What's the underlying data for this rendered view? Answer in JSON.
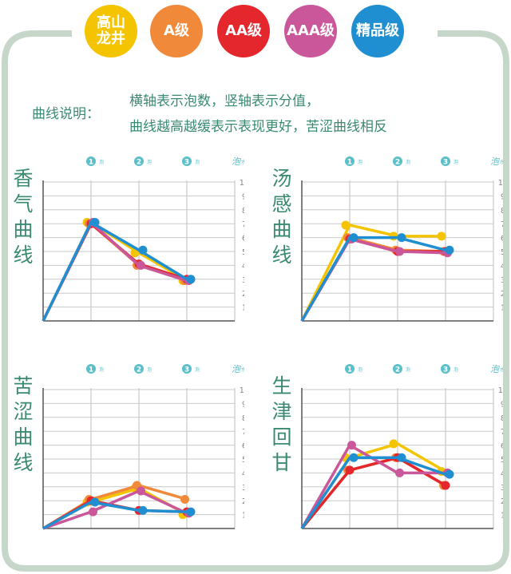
{
  "legend": [
    {
      "label": "高山\n龙井",
      "color": "#f5c400"
    },
    {
      "label": "A级",
      "color": "#f08a3a"
    },
    {
      "label": "AA级",
      "color": "#e4262d"
    },
    {
      "label": "AAA级",
      "color": "#c9579a"
    },
    {
      "label": "精品级",
      "color": "#1f8fd2"
    }
  ],
  "note": {
    "label": "曲线说明：",
    "line1": "横轴表示泡数，竖轴表示分值，",
    "line2": "曲线越高越缓表示表现更好，苦涩曲线相反"
  },
  "colors": {
    "frame": "#c6d6c8",
    "grid": "#c9c9c9",
    "axis": "#555555",
    "tick": "#5bbfca",
    "text": "#3a8a72"
  },
  "x_axis": {
    "ticks": [
      "1",
      "2",
      "3"
    ],
    "tick_unit": "泡",
    "end_label": "泡",
    "end_unit": "水"
  },
  "chart_data": [
    {
      "type": "line",
      "title": "香气曲线",
      "x": [
        0,
        1,
        2,
        3
      ],
      "ylim": [
        0,
        10
      ],
      "yticks": [
        1,
        2,
        3,
        4,
        5,
        6,
        7,
        8,
        9,
        10
      ],
      "series": [
        {
          "color": "#f5c400",
          "values": [
            0,
            7.1,
            4.9,
            2.9
          ]
        },
        {
          "color": "#f08a3a",
          "values": [
            0,
            7.0,
            4.0,
            2.9
          ]
        },
        {
          "color": "#e4262d",
          "values": [
            0,
            7.0,
            4.1,
            3.0
          ]
        },
        {
          "color": "#c9579a",
          "values": [
            0,
            7.1,
            4.0,
            2.9
          ]
        },
        {
          "color": "#1f8fd2",
          "values": [
            0,
            7.1,
            5.1,
            3.0
          ]
        }
      ]
    },
    {
      "type": "line",
      "title": "汤感曲线",
      "x": [
        0,
        1,
        2,
        3
      ],
      "ylim": [
        0,
        10
      ],
      "yticks": [
        1,
        2,
        3,
        4,
        5,
        6,
        7,
        8,
        9,
        10
      ],
      "series": [
        {
          "color": "#f5c400",
          "values": [
            0,
            6.9,
            6.1,
            6.1
          ]
        },
        {
          "color": "#f08a3a",
          "values": [
            0,
            6.0,
            5.1,
            5.0
          ]
        },
        {
          "color": "#e4262d",
          "values": [
            0,
            5.9,
            5.0,
            5.0
          ]
        },
        {
          "color": "#c9579a",
          "values": [
            0,
            5.9,
            5.0,
            4.9
          ]
        },
        {
          "color": "#1f8fd2",
          "values": [
            0,
            6.0,
            6.0,
            5.1
          ]
        }
      ]
    },
    {
      "type": "line",
      "title": "苦涩曲线",
      "x": [
        0,
        1,
        2,
        3
      ],
      "ylim": [
        0,
        10
      ],
      "yticks": [
        1,
        2,
        3,
        4,
        5,
        6,
        7,
        8,
        9,
        10
      ],
      "series": [
        {
          "color": "#f5c400",
          "values": [
            0,
            1.9,
            2.9,
            1.0
          ]
        },
        {
          "color": "#f08a3a",
          "values": [
            0,
            2.1,
            3.1,
            2.1
          ]
        },
        {
          "color": "#e4262d",
          "values": [
            0,
            2.0,
            1.3,
            1.2
          ]
        },
        {
          "color": "#c9579a",
          "values": [
            0,
            1.2,
            2.7,
            1.1
          ]
        },
        {
          "color": "#1f8fd2",
          "values": [
            0,
            1.9,
            1.3,
            1.2
          ]
        }
      ]
    },
    {
      "type": "line",
      "title": "生津回甘",
      "x": [
        0,
        1,
        2,
        3
      ],
      "ylim": [
        0,
        10
      ],
      "yticks": [
        1,
        2,
        3,
        4,
        5,
        6,
        7,
        8,
        9,
        10
      ],
      "series": [
        {
          "color": "#f5c400",
          "values": [
            0,
            5.1,
            6.1,
            4.1
          ]
        },
        {
          "color": "#f08a3a",
          "values": [
            0,
            4.2,
            5.1,
            3.1
          ]
        },
        {
          "color": "#e4262d",
          "values": [
            0,
            4.2,
            5.1,
            3.1
          ]
        },
        {
          "color": "#c9579a",
          "values": [
            0,
            6.0,
            4.0,
            4.0
          ]
        },
        {
          "color": "#1f8fd2",
          "values": [
            0,
            5.1,
            5.1,
            3.9
          ]
        }
      ]
    }
  ]
}
